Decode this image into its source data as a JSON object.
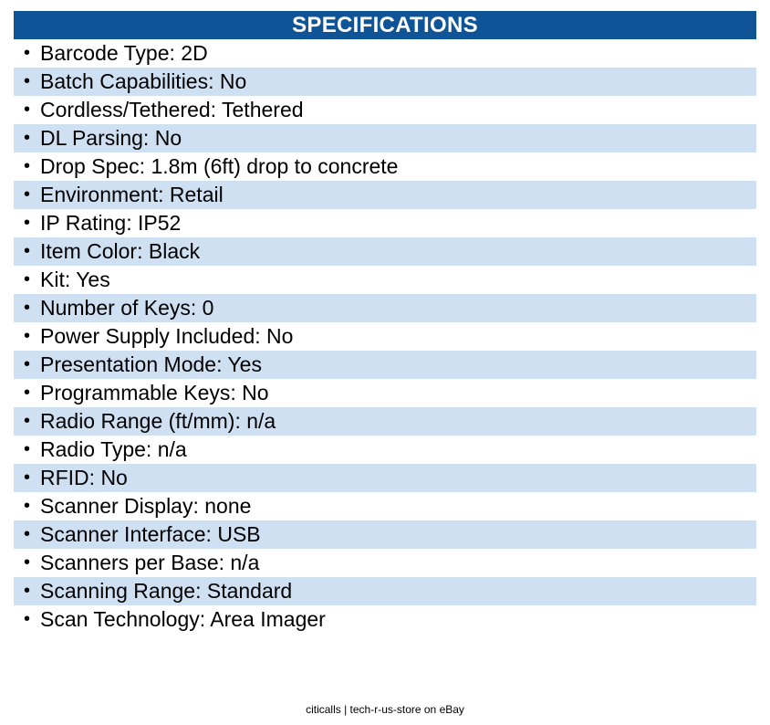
{
  "header": {
    "title": "SPECIFICATIONS"
  },
  "bullet_glyph": "•",
  "specs": [
    "Barcode Type: 2D",
    "Batch Capabilities: No",
    "Cordless/Tethered: Tethered",
    "DL Parsing: No",
    "Drop Spec: 1.8m (6ft) drop to concrete",
    "Environment: Retail",
    "IP Rating: IP52",
    "Item Color: Black",
    "Kit: Yes",
    "Number of Keys: 0",
    "Power Supply Included: No",
    "Presentation Mode: Yes",
    "Programmable Keys: No",
    "Radio Range (ft/mm): n/a",
    "Radio Type: n/a",
    "RFID: No",
    "Scanner Display: none",
    "Scanner Interface: USB",
    "Scanners per Base: n/a",
    "Scanning Range: Standard",
    "Scan Technology: Area Imager"
  ],
  "footer": {
    "text": "citicalls | tech-r-us-store on eBay"
  },
  "colors": {
    "header_bg": "#0f5496",
    "stripe_bg": "#cfe0f3",
    "text": "#000000"
  }
}
